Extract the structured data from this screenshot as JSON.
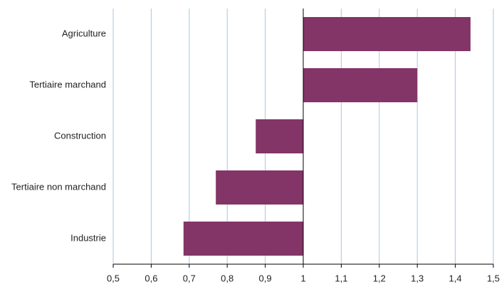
{
  "chart_data": {
    "type": "bar",
    "orientation": "horizontal",
    "categories": [
      "Agriculture",
      "Tertiaire marchand",
      "Construction",
      "Tertiaire non marchand",
      "Industrie"
    ],
    "values": [
      1.44,
      1.3,
      0.875,
      0.77,
      0.685
    ],
    "color": "#833567",
    "bar_base": 1,
    "xlim": [
      0.5,
      1.5
    ],
    "xticks": [
      {
        "value": 0.5,
        "label": "0,5"
      },
      {
        "value": 0.6,
        "label": "0,6"
      },
      {
        "value": 0.7,
        "label": "0,7"
      },
      {
        "value": 0.8,
        "label": "0,8"
      },
      {
        "value": 0.9,
        "label": "0,9"
      },
      1,
      {
        "value": 1.1,
        "label": "1,1"
      },
      {
        "value": 1.2,
        "label": "1,2"
      },
      {
        "value": 1.3,
        "label": "1,3"
      },
      {
        "value": 1.4,
        "label": "1,4"
      },
      {
        "value": 1.5,
        "label": "1,5"
      }
    ],
    "grid": true
  }
}
